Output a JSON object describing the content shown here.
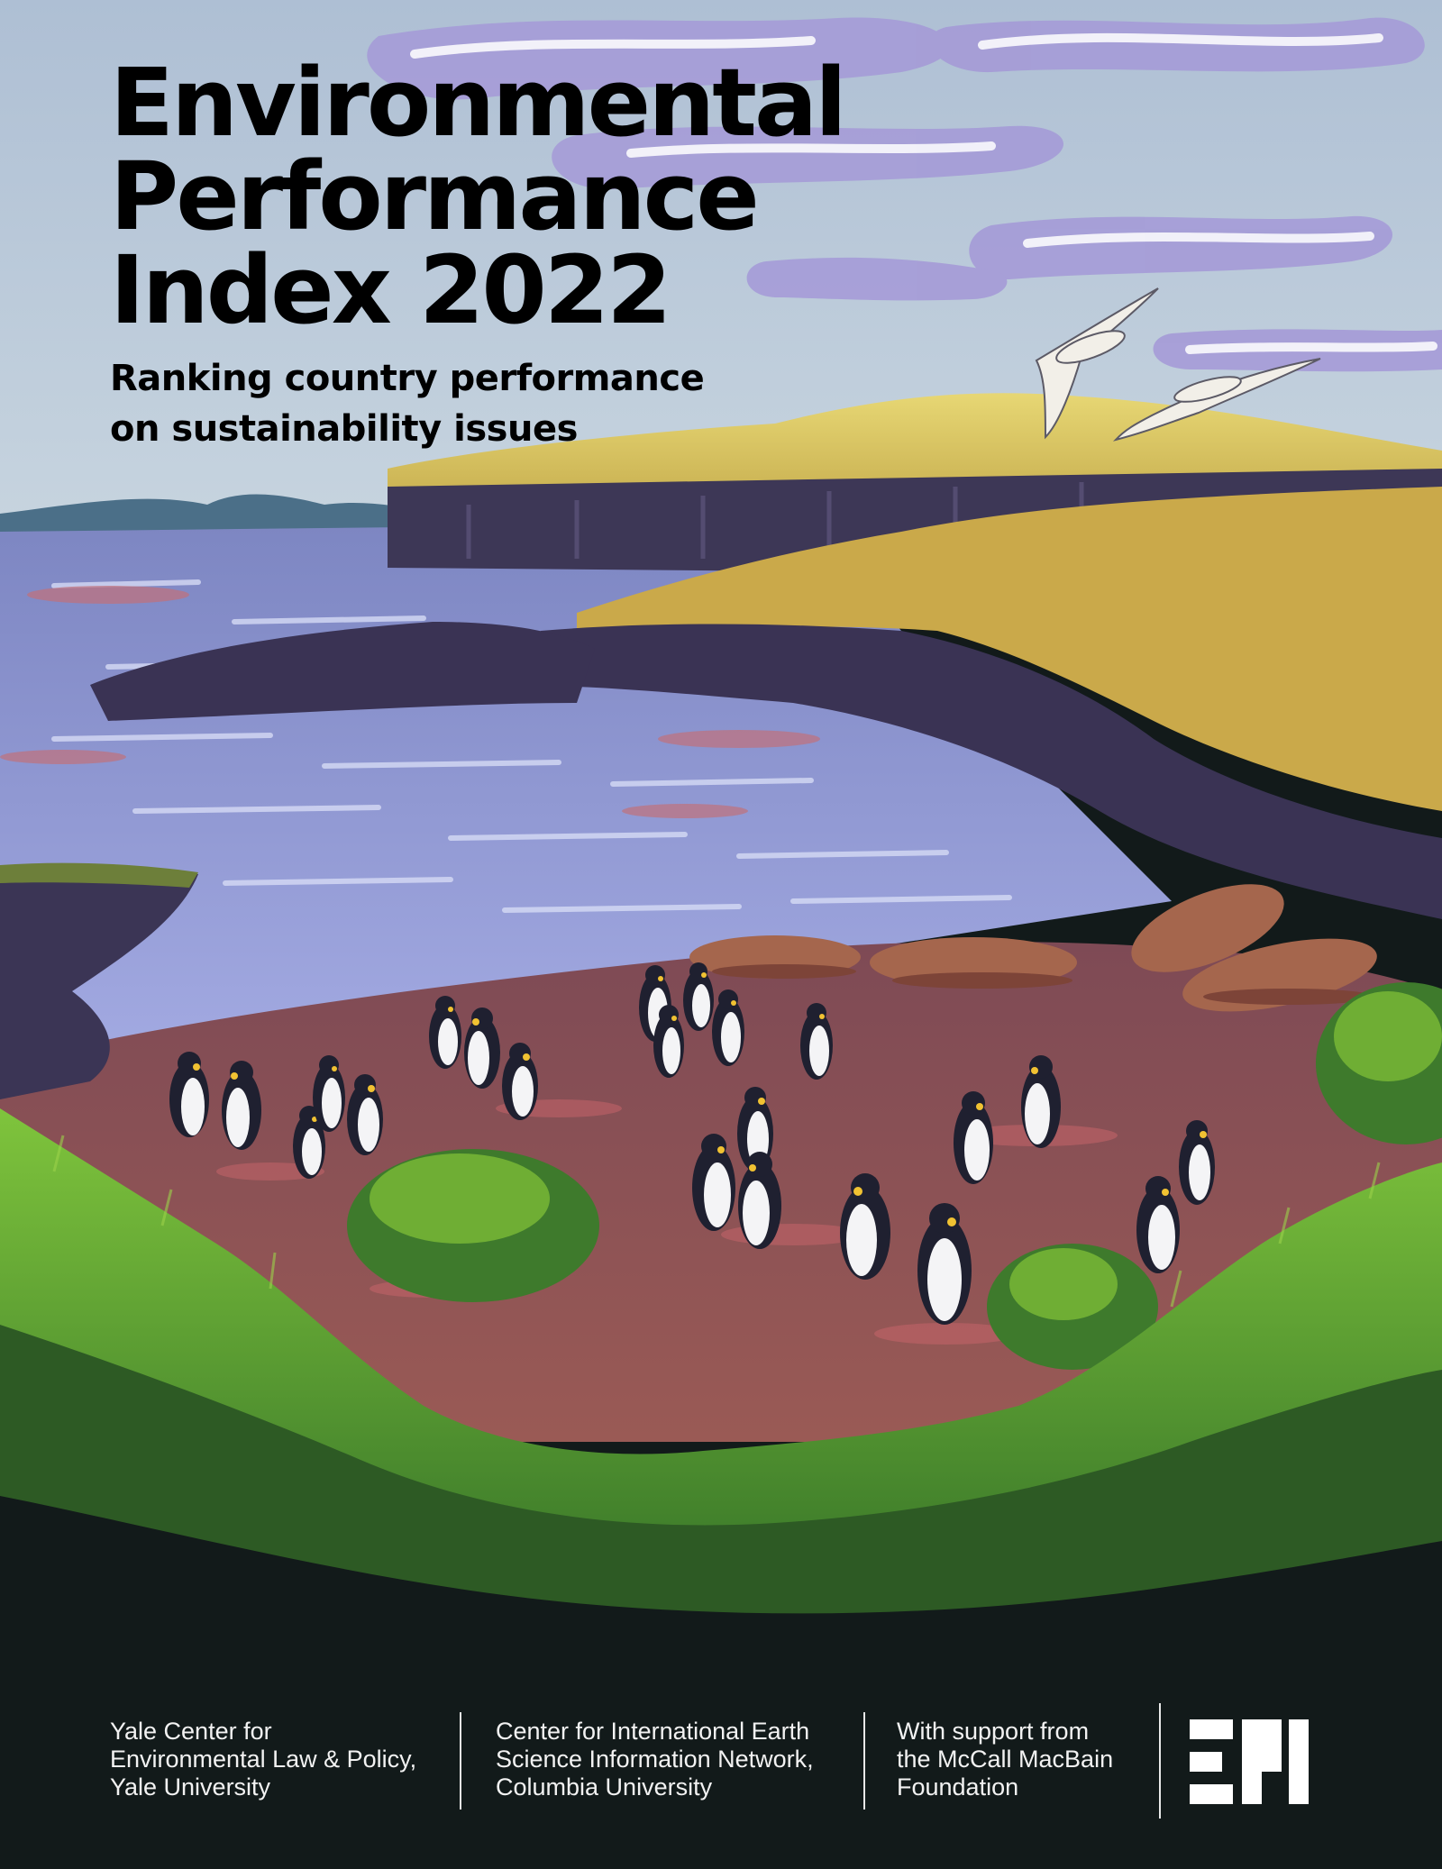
{
  "cover": {
    "title_lines": [
      "Environmental",
      "Performance",
      "Index 2022"
    ],
    "subtitle_lines": [
      "Ranking country performance",
      "on sustainability issues"
    ]
  },
  "illustration": {
    "subject": "coastal-landscape-with-penguins-seals-and-albatrosses",
    "colors": {
      "sky": "#b8c9d8",
      "clouds": "#a79ed8",
      "cliff_grass": "#d7c462",
      "cliff_rock": "#3f3a55",
      "water": "#8e98d6",
      "beach": "#8e4f57",
      "foreground_grass": "#4f9a2e",
      "dark_ground": "#121a1a"
    }
  },
  "footer": {
    "organizations": [
      {
        "lines": [
          "Yale Center for",
          "Environmental Law & Policy,",
          "Yale University"
        ]
      },
      {
        "lines": [
          "Center for International Earth",
          "Science Information Network,",
          "Columbia University"
        ]
      },
      {
        "lines": [
          "With support from",
          "the McCall MacBain",
          "Foundation"
        ]
      }
    ],
    "logo_icon": "epi-logo-icon"
  }
}
